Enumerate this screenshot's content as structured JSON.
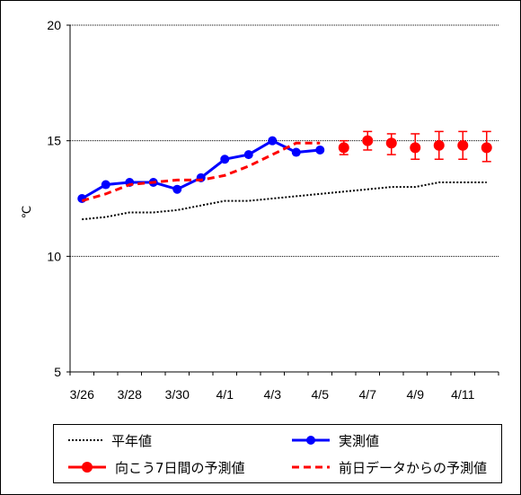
{
  "chart_data": {
    "type": "line",
    "ylabel": "℃",
    "ylim": [
      5,
      20
    ],
    "yticks": [
      5,
      10,
      15,
      20
    ],
    "grid": "horizontal dotted at 15 and 20",
    "x_dates": [
      "3/26",
      "3/27",
      "3/28",
      "3/29",
      "3/30",
      "3/31",
      "4/1",
      "4/2",
      "4/3",
      "4/4",
      "4/5",
      "4/6",
      "4/7",
      "4/8",
      "4/9",
      "4/10",
      "4/11",
      "4/12"
    ],
    "x_tick_labels": [
      "3/26",
      "3/28",
      "3/30",
      "4/1",
      "4/3",
      "4/5",
      "4/7",
      "4/9",
      "4/11"
    ],
    "series": [
      {
        "name": "平年値",
        "style": "dotted",
        "color": "#000000",
        "x": [
          "3/26",
          "3/27",
          "3/28",
          "3/29",
          "3/30",
          "3/31",
          "4/1",
          "4/2",
          "4/3",
          "4/4",
          "4/5",
          "4/6",
          "4/7",
          "4/8",
          "4/9",
          "4/10",
          "4/11",
          "4/12"
        ],
        "values": [
          11.6,
          11.7,
          11.9,
          11.9,
          12.0,
          12.2,
          12.4,
          12.4,
          12.5,
          12.6,
          12.7,
          12.8,
          12.9,
          13.0,
          13.0,
          13.2,
          13.2,
          13.2
        ]
      },
      {
        "name": "実測値",
        "style": "line-markers",
        "color": "#0000ff",
        "x": [
          "3/26",
          "3/27",
          "3/28",
          "3/29",
          "3/30",
          "3/31",
          "4/1",
          "4/2",
          "4/3",
          "4/4",
          "4/5"
        ],
        "values": [
          12.5,
          13.1,
          13.2,
          13.2,
          12.9,
          13.4,
          14.2,
          14.4,
          15.0,
          14.5,
          14.6
        ]
      },
      {
        "name": "向こう7日間の予測値",
        "style": "markers-errorbars",
        "color": "#ff0000",
        "x": [
          "4/6",
          "4/7",
          "4/8",
          "4/9",
          "4/10",
          "4/11",
          "4/12"
        ],
        "values": [
          14.7,
          15.0,
          14.9,
          14.7,
          14.8,
          14.8,
          14.7
        ],
        "err_low": [
          14.4,
          14.6,
          14.4,
          14.2,
          14.2,
          14.2,
          14.1
        ],
        "err_high": [
          15.0,
          15.4,
          15.3,
          15.3,
          15.4,
          15.4,
          15.4
        ]
      },
      {
        "name": "前日データからの予測値",
        "style": "dashed",
        "color": "#ff0000",
        "x": [
          "3/26",
          "3/27",
          "3/28",
          "3/29",
          "3/30",
          "3/31",
          "4/1",
          "4/2",
          "4/3",
          "4/4",
          "4/5"
        ],
        "values": [
          12.4,
          12.7,
          13.1,
          13.2,
          13.3,
          13.3,
          13.5,
          13.9,
          14.4,
          14.9,
          14.9
        ]
      }
    ],
    "legend": [
      "平年値",
      "実測値",
      "向こう7日間の予測値",
      "前日データからの予測値"
    ]
  }
}
